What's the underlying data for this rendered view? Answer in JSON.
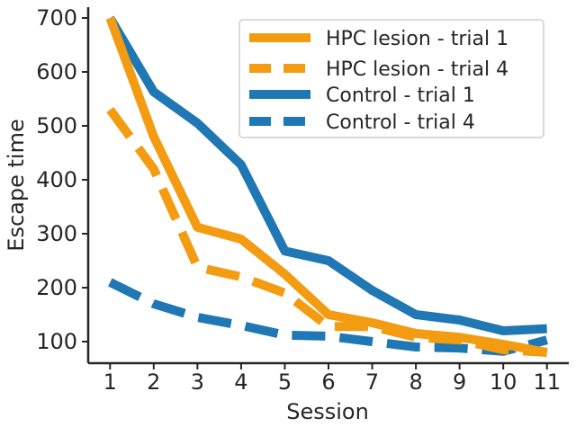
{
  "chart_data": {
    "type": "line",
    "title": "",
    "xlabel": "Session",
    "ylabel": "Escape time",
    "x": [
      1,
      2,
      3,
      4,
      5,
      6,
      7,
      8,
      9,
      10,
      11
    ],
    "xlim": [
      0.5,
      11.5
    ],
    "ylim": [
      60,
      720
    ],
    "yticks": [
      100,
      200,
      300,
      400,
      500,
      600,
      700
    ],
    "grid": false,
    "legend": "top-right",
    "series": [
      {
        "name": "HPC lesion - trial 1",
        "color": "#f39c12",
        "linestyle": "solid",
        "values": [
          700,
          480,
          312,
          290,
          225,
          150,
          135,
          115,
          108,
          95,
          80
        ]
      },
      {
        "name": "HPC lesion - trial 4",
        "color": "#f39c12",
        "linestyle": "dashed",
        "values": [
          530,
          420,
          238,
          220,
          190,
          128,
          128,
          108,
          103,
          85,
          80
        ]
      },
      {
        "name": "Control - trial 1",
        "color": "#1f77b4",
        "linestyle": "solid",
        "values": [
          700,
          563,
          505,
          428,
          268,
          250,
          195,
          150,
          140,
          120,
          124
        ]
      },
      {
        "name": "Control - trial 4",
        "color": "#1f77b4",
        "linestyle": "dashed",
        "values": [
          210,
          170,
          145,
          130,
          112,
          110,
          100,
          90,
          88,
          82,
          103
        ]
      }
    ]
  }
}
